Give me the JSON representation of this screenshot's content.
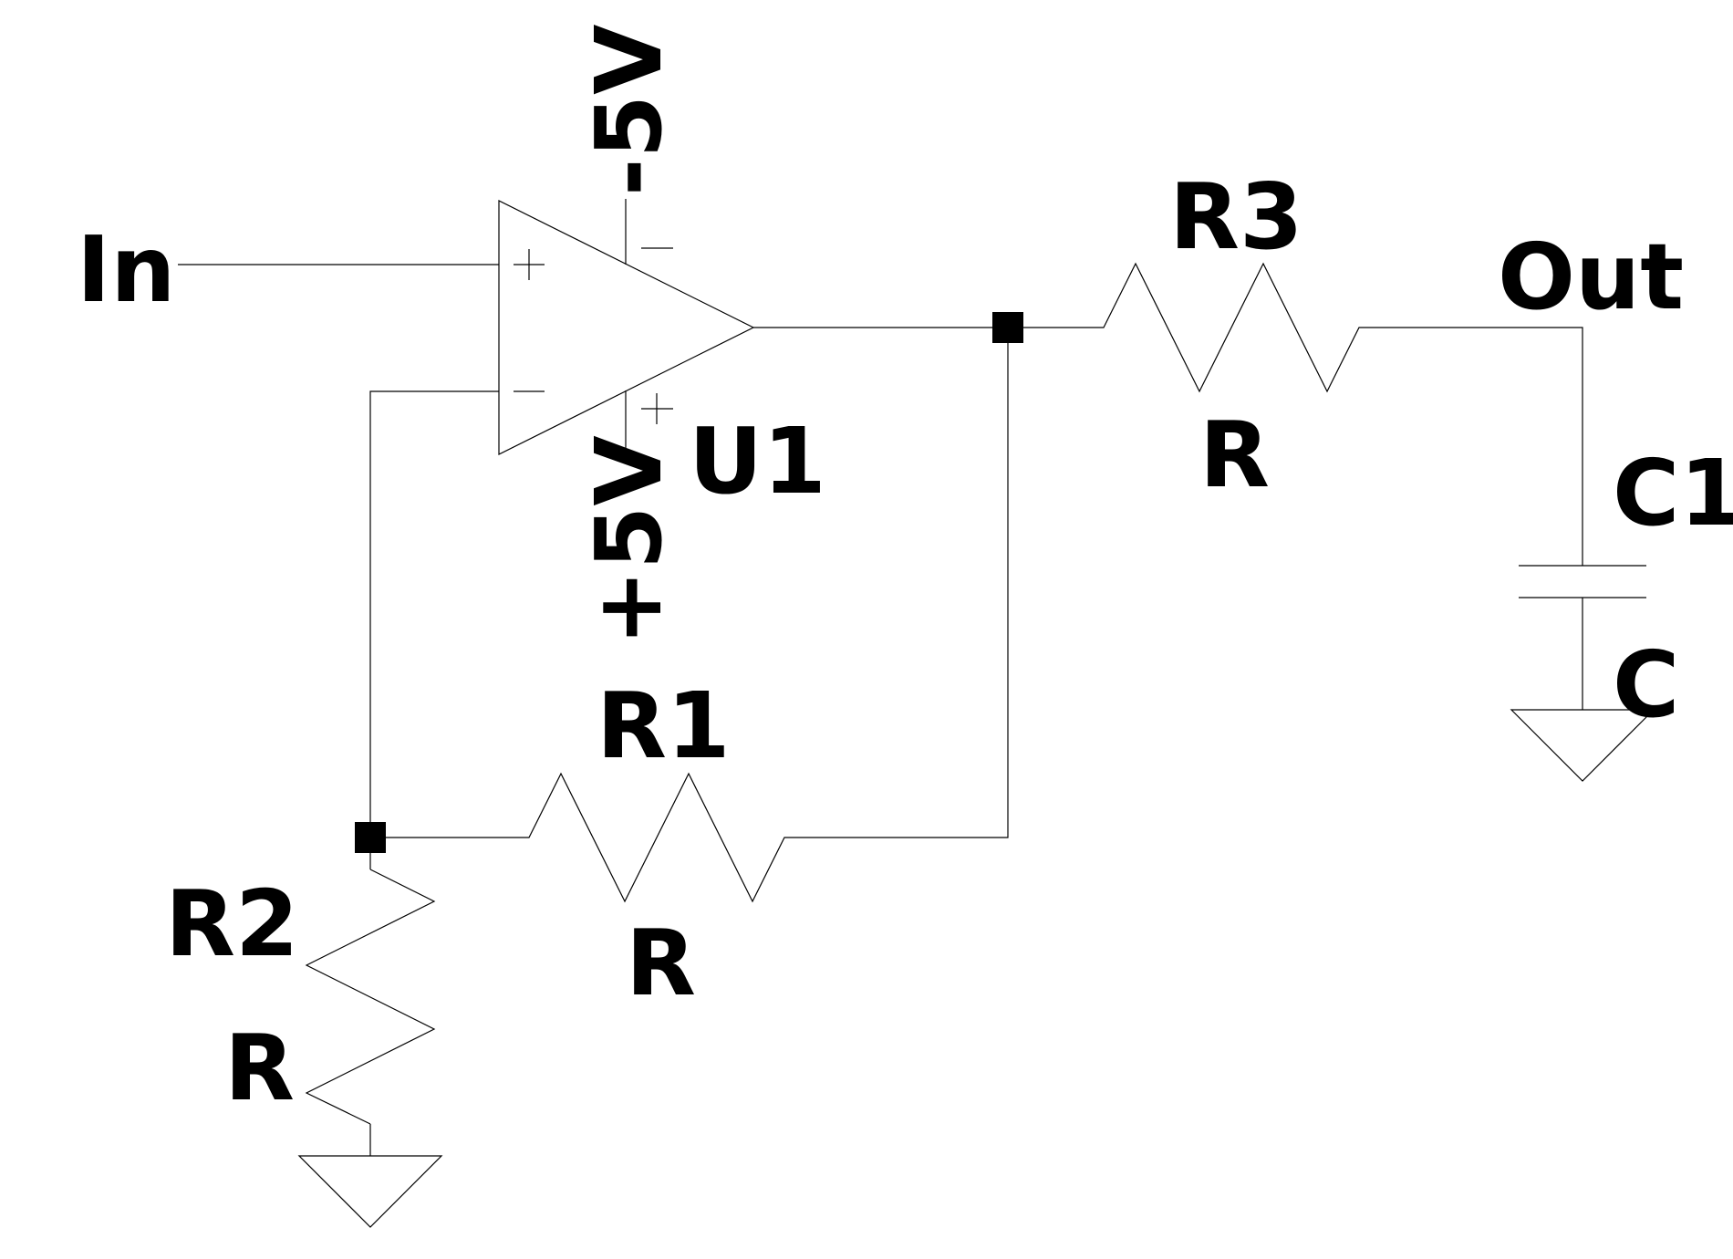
{
  "schematic": {
    "net_labels": {
      "input": "In",
      "output": "Out",
      "neg_supply": "-5V",
      "pos_supply": "+5V"
    },
    "components": {
      "opamp": {
        "ref": "U1"
      },
      "r1": {
        "ref": "R1",
        "value": "R"
      },
      "r2": {
        "ref": "R2",
        "value": "R"
      },
      "r3": {
        "ref": "R3",
        "value": "R"
      },
      "c1": {
        "ref": "C1",
        "value": "C"
      }
    }
  }
}
